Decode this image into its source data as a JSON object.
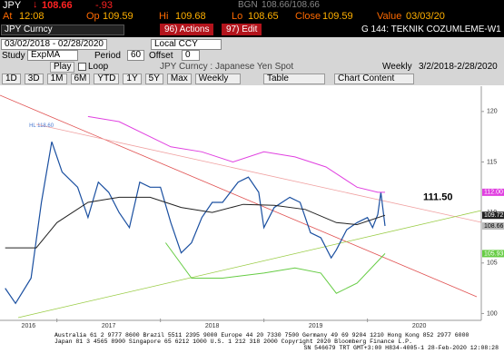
{
  "header": {
    "ticker": "JPY",
    "last": "108.66",
    "change": "-.93",
    "source": "BGN",
    "bid_ask": "108.66/108.66",
    "fields": [
      {
        "label": "At",
        "value": "12:08"
      },
      {
        "label": "Op",
        "value": "109.59"
      },
      {
        "label": "Hi",
        "value": "109.68"
      },
      {
        "label": "Lo",
        "value": "108.65"
      },
      {
        "label": "Close",
        "value": "109.59"
      },
      {
        "label": "Value",
        "value": "03/03/20"
      }
    ]
  },
  "toolbar": {
    "security": "JPY Curncy",
    "actions": "96) Actions",
    "edit": "97) Edit",
    "page_title": "G 144: TEKNIK COZUMLEME-W1",
    "date_range": "03/02/2018 - 02/28/2020",
    "currency": "Local CCY",
    "study_label": "Study",
    "study": "ExpMA",
    "period_label": "Period",
    "period": "60",
    "offset_label": "Offset",
    "offset": "0",
    "play": "Play",
    "loop": "Loop",
    "chart_title": "JPY Curncy : Japanese Yen Spot",
    "frequency": "Weekly",
    "span": "3/2/2018-2/28/2020",
    "ranges": [
      "1D",
      "3D",
      "1M",
      "6M",
      "YTD",
      "1Y",
      "5Y",
      "Max"
    ],
    "range_frequency": "Weekly",
    "table": "Table",
    "chart_content": "Chart Content"
  },
  "chart_data": {
    "type": "line",
    "xlim": [
      2016.45,
      2021.1
    ],
    "xticks": [
      2016,
      2017,
      2018,
      2019,
      2020
    ],
    "ylim": [
      99.5,
      122.5
    ],
    "yticks": [
      100,
      105,
      110,
      115,
      120
    ],
    "series": [
      {
        "color": "#1a4fa0",
        "x": [
          2016.5,
          2016.6,
          2016.75,
          2016.85,
          2016.95,
          2017.05,
          2017.2,
          2017.3,
          2017.4,
          2017.5,
          2017.6,
          2017.7,
          2017.8,
          2017.9,
          2018.0,
          2018.1,
          2018.2,
          2018.3,
          2018.4,
          2018.5,
          2018.6,
          2018.75,
          2018.85,
          2018.95,
          2019.0,
          2019.1,
          2019.25,
          2019.35,
          2019.45,
          2019.55,
          2019.65,
          2019.7,
          2019.8,
          2019.9,
          2020.0,
          2020.05,
          2020.1,
          2020.13,
          2020.17
        ],
        "values": [
          102.5,
          101,
          103.5,
          111,
          117,
          114,
          112.5,
          109.5,
          113,
          112,
          110,
          108.5,
          113,
          112.5,
          112.5,
          109,
          106,
          107,
          109.5,
          111,
          111,
          113,
          113.5,
          112,
          108.5,
          110.5,
          111.5,
          111,
          108,
          107.5,
          105.5,
          106.3,
          108.3,
          109,
          109.5,
          108.5,
          109.8,
          112,
          108.66
        ]
      },
      {
        "color": "#222222",
        "x": [
          2016.5,
          2016.8,
          2017.0,
          2017.3,
          2017.6,
          2017.9,
          2018.2,
          2018.5,
          2018.8,
          2019.1,
          2019.4,
          2019.7,
          2019.9,
          2020.17
        ],
        "values": [
          106.5,
          106.5,
          109,
          111,
          111.5,
          111.5,
          110.5,
          110,
          110.8,
          110.7,
          110.3,
          109,
          108.8,
          109.72
        ]
      },
      {
        "color": "#e040e0",
        "x": [
          2017.3,
          2017.6,
          2017.9,
          2018.1,
          2018.4,
          2018.7,
          2019.0,
          2019.3,
          2019.6,
          2019.9,
          2020.1,
          2020.17
        ],
        "values": [
          119.5,
          119,
          117.5,
          116.5,
          116,
          115,
          116,
          115.5,
          114.5,
          112.5,
          112,
          112
        ]
      },
      {
        "color": "#66cc44",
        "x": [
          2018.05,
          2018.3,
          2018.6,
          2019.0,
          2019.3,
          2019.55,
          2019.7,
          2019.9,
          2020.17
        ],
        "values": [
          107,
          103.5,
          103.5,
          104,
          104.5,
          104,
          102,
          103,
          105.93
        ]
      }
    ],
    "price_tags": [
      {
        "value": 112,
        "label": "112.00",
        "color": "#e040e0"
      },
      {
        "value": 109.72,
        "label": "109.72",
        "color": "#222222"
      },
      {
        "value": 108.66,
        "label": "108.66",
        "color": "#bbbbbb"
      },
      {
        "value": 105.93,
        "label": "105.93",
        "color": "#66cc44"
      }
    ],
    "level_label": {
      "value": 111.5,
      "label": "111.50"
    },
    "high_label": {
      "x": 2016.85,
      "value": 118.6,
      "label": "HL 118.60"
    }
  },
  "footer": [
    "Australia 61 2 9777 8600 Brazil 5511 2395 9000 Europe 44 20 7330 7500 Germany 49 69 9204 1210 Hong Kong 852 2977 6000",
    "Japan 81 3 4565 8900     Singapore 65 6212 1000     U.S. 1 212 318 2000     Copyright 2020 Bloomberg Finance L.P.",
    "SN 546679 TRT  GMT+3:00 H834-4005-1 28-Feb-2020 12:08:28"
  ]
}
